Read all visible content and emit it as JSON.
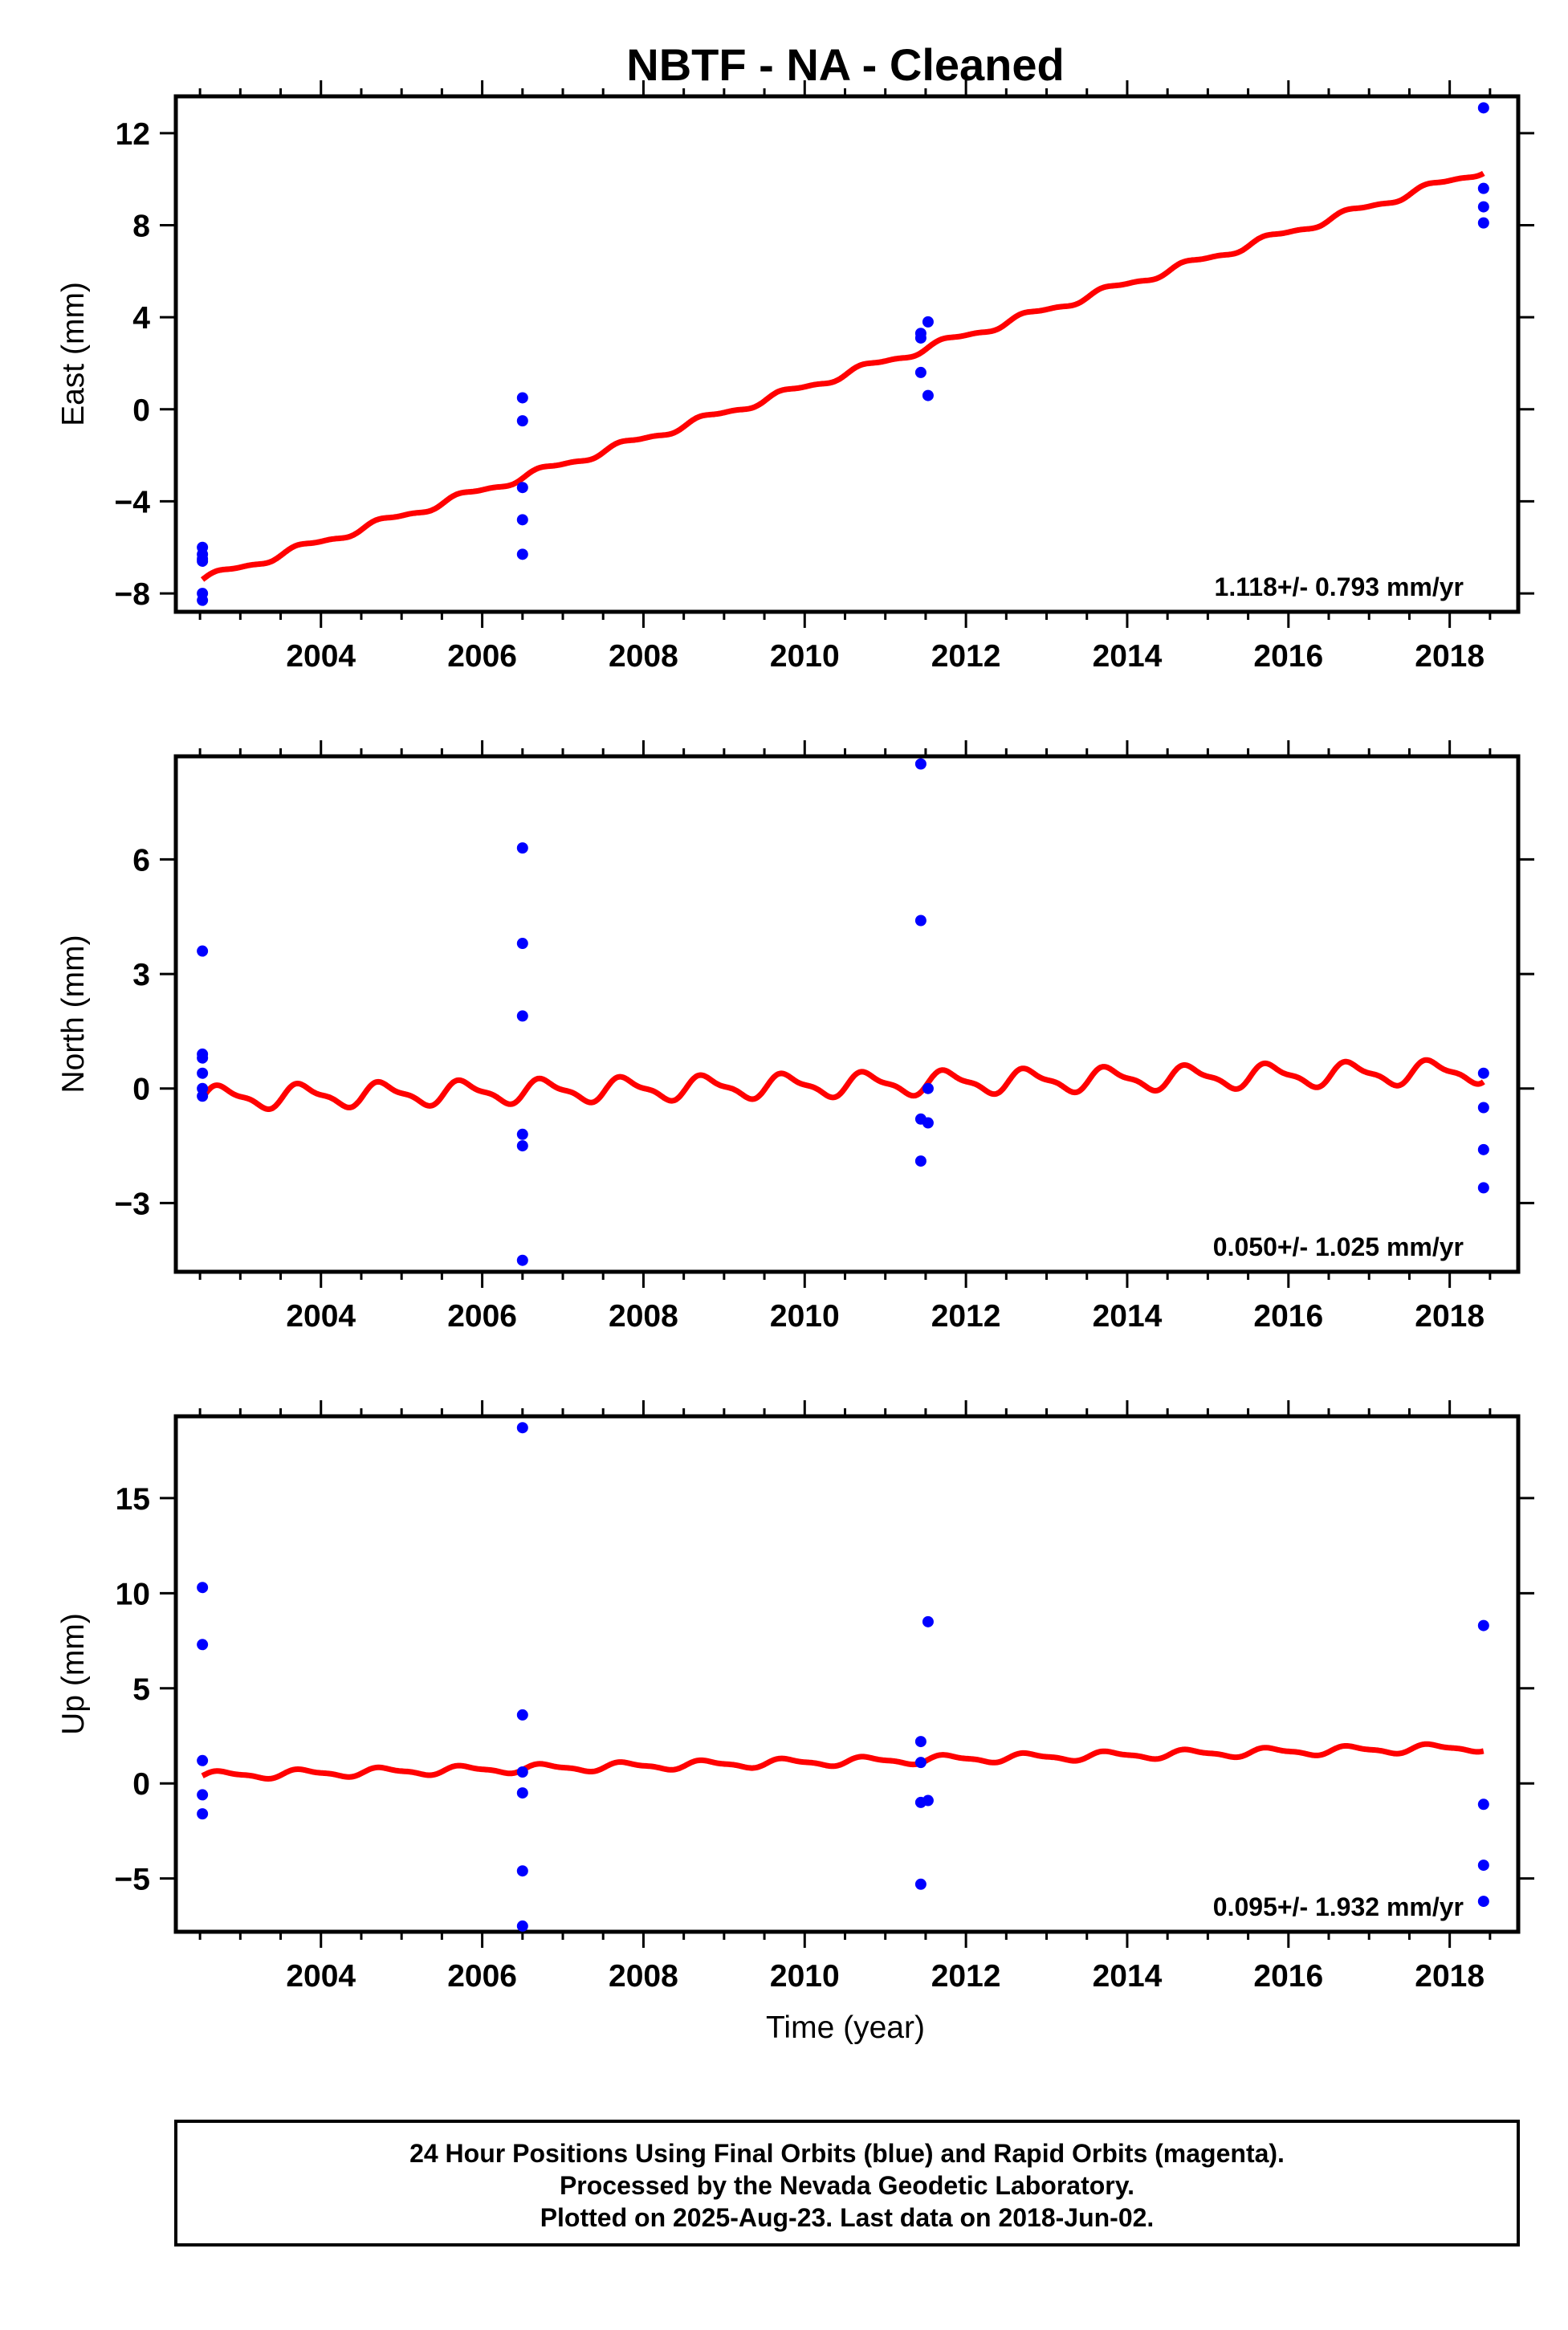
{
  "title": "NBTF  - NA - Cleaned",
  "colors": {
    "final_orbits": "#0000ff",
    "model": "#ff0000",
    "frame": "#000000"
  },
  "xaxis": {
    "label": "Time (year)",
    "range": [
      2002.2,
      2018.85
    ],
    "ticks": [
      "2004",
      "2006",
      "2008",
      "2010",
      "2012",
      "2014",
      "2016",
      "2018"
    ],
    "tick_values": [
      2004,
      2006,
      2008,
      2010,
      2012,
      2014,
      2016,
      2018
    ]
  },
  "footer": {
    "line1": "24 Hour Positions Using Final Orbits (blue) and Rapid Orbits (magenta).",
    "line2": "Processed by the Nevada Geodetic Laboratory.",
    "line3": "Plotted on 2025-Aug-23. Last data on 2018-Jun-02."
  },
  "chart_data": [
    {
      "type": "scatter",
      "panel": "east",
      "ylabel": "East (mm)",
      "ylim": [
        -8.8,
        13.6
      ],
      "yticks": [
        "12",
        "8",
        "4",
        "0",
        "−4",
        "−8"
      ],
      "ytick_values": [
        12,
        8,
        4,
        0,
        -4,
        -8
      ],
      "rate_text": "1.118+/- 0.793 mm/yr",
      "points": {
        "x": [
          2002.53,
          2002.53,
          2002.53,
          2002.53,
          2002.53,
          2002.53,
          2006.5,
          2006.5,
          2006.5,
          2006.5,
          2006.5,
          2011.44,
          2011.44,
          2011.44,
          2011.53,
          2011.53,
          2018.42,
          2018.42,
          2018.42,
          2018.42
        ],
        "y": [
          -6.0,
          -6.3,
          -6.6,
          -8.0,
          -8.3,
          -6.5,
          0.5,
          -0.5,
          -3.4,
          -4.8,
          -6.3,
          3.3,
          3.1,
          1.6,
          3.8,
          0.6,
          13.1,
          9.6,
          8.8,
          8.1
        ]
      },
      "model": {
        "x_start": 2002.53,
        "x_end": 2018.42,
        "y_start": -7.4,
        "y_end": 10.4,
        "annual_amplitude": 0.15
      }
    },
    {
      "type": "scatter",
      "panel": "north",
      "ylabel": "North (mm)",
      "ylim": [
        -4.8,
        8.7
      ],
      "yticks": [
        "6",
        "3",
        "0",
        "−3"
      ],
      "ytick_values": [
        6,
        3,
        0,
        -3
      ],
      "rate_text": "0.050+/- 1.025 mm/yr",
      "points": {
        "x": [
          2002.53,
          2002.53,
          2002.53,
          2002.53,
          2002.53,
          2002.53,
          2006.5,
          2006.5,
          2006.5,
          2006.5,
          2006.5,
          2006.5,
          2011.44,
          2011.44,
          2011.44,
          2011.44,
          2011.53,
          2011.53,
          2018.42,
          2018.42,
          2018.42,
          2018.42
        ],
        "y": [
          3.6,
          0.9,
          0.8,
          0.4,
          0.0,
          -0.2,
          6.3,
          3.8,
          1.9,
          -1.2,
          -1.5,
          -4.5,
          8.5,
          4.4,
          -0.8,
          -1.9,
          0.0,
          -0.9,
          0.4,
          -0.5,
          -1.6,
          -2.6
        ]
      },
      "model": {
        "x_start": 2002.53,
        "x_end": 2018.42,
        "y_start": -0.25,
        "y_end": 0.45,
        "annual_amplitude": 0.28
      }
    },
    {
      "type": "scatter",
      "panel": "up",
      "ylabel": "Up (mm)",
      "ylim": [
        -7.8,
        19.3
      ],
      "yticks": [
        "15",
        "10",
        "5",
        "0",
        "−5"
      ],
      "ytick_values": [
        15,
        10,
        5,
        0,
        -5
      ],
      "rate_text": "0.095+/- 1.932 mm/yr",
      "points": {
        "x": [
          2002.53,
          2002.53,
          2002.53,
          2002.53,
          2002.53,
          2006.5,
          2006.5,
          2006.5,
          2006.5,
          2006.5,
          2006.5,
          2011.44,
          2011.44,
          2011.44,
          2011.44,
          2011.53,
          2011.53,
          2018.42,
          2018.42,
          2018.42,
          2018.42
        ],
        "y": [
          10.3,
          7.3,
          1.2,
          -0.6,
          -1.6,
          18.7,
          3.6,
          0.6,
          -0.5,
          -4.6,
          -7.5,
          2.2,
          1.1,
          -1.0,
          -5.3,
          8.5,
          -0.9,
          8.3,
          -1.1,
          -4.3,
          -6.2
        ]
      },
      "model": {
        "x_start": 2002.53,
        "x_end": 2018.42,
        "y_start": 0.4,
        "y_end": 1.9,
        "annual_amplitude": 0.2
      }
    }
  ]
}
